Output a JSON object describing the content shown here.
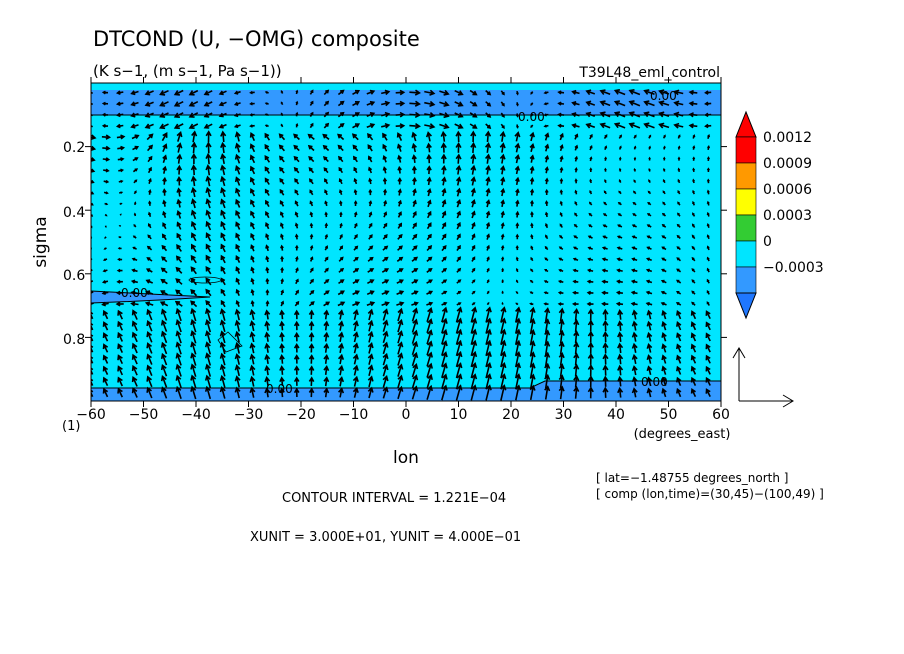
{
  "chart_data": {
    "type": "heatmap",
    "title": "DTCOND (U, −OMG) composite",
    "subtitle": "(K s−1, (m s−1, Pa s−1))",
    "run_label": "T39L48_eml_control",
    "xlabel": "lon",
    "x_units": "(degrees_east)",
    "ylabel": "sigma",
    "y_extra_label": "(1)",
    "xlim": [
      -60,
      60
    ],
    "ylim": [
      1.0,
      0.0
    ],
    "x_ticks": [
      "−60",
      "−50",
      "−40",
      "−30",
      "−20",
      "−10",
      "0",
      "10",
      "20",
      "30",
      "40",
      "50",
      "60"
    ],
    "x_tick_values": [
      -60,
      -50,
      -40,
      -30,
      -20,
      -10,
      0,
      10,
      20,
      30,
      40,
      50,
      60
    ],
    "y_ticks": [
      "0.2",
      "0.4",
      "0.6",
      "0.8"
    ],
    "y_tick_values": [
      0.2,
      0.4,
      0.6,
      0.8
    ],
    "contour_labels": [
      "0.00",
      "0.00",
      "0.00",
      "0.00",
      "0.00"
    ],
    "colorbar": {
      "levels": [
        "0.0012",
        "0.0009",
        "0.0006",
        "0.0003",
        "0",
        "−0.0003"
      ],
      "colors": [
        "#ff0000",
        "#ff9900",
        "#ffff00",
        "#33cc33",
        "#00e5ff",
        "#3399ff"
      ],
      "over_color": "#ff0000",
      "under_color": "#1f77ff"
    },
    "field_color": "#00e5ff",
    "negative_color": "#3399ff",
    "info": {
      "lat": "[ lat=−1.48755 degrees_north ]",
      "comp": "[ comp (lon,time)=(30,45)−(100,49) ]",
      "contour_interval": "CONTOUR INTERVAL = 1.221E−04",
      "units": "XUNIT = 3.000E+01, YUNIT = 4.000E−01"
    }
  }
}
